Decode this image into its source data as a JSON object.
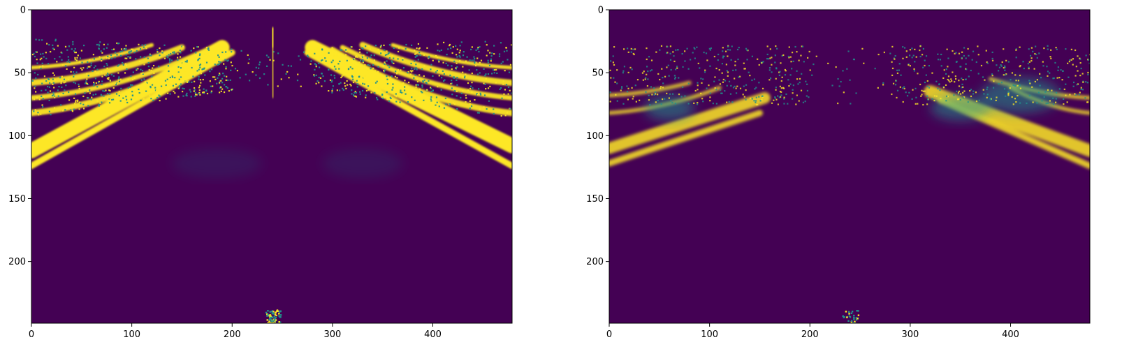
{
  "chart_data": [
    {
      "type": "heatmap",
      "colormap": "viridis",
      "colors": {
        "low": "#440154",
        "mid": "#21918c",
        "high": "#fde725"
      },
      "xlim": [
        0,
        479
      ],
      "ylim": [
        249,
        0
      ],
      "xticks": [
        0,
        100,
        200,
        300,
        400
      ],
      "yticks": [
        0,
        50,
        100,
        150,
        200
      ],
      "xtick_labels": [
        "0",
        "100",
        "200",
        "300",
        "400"
      ],
      "ytick_labels": [
        "0",
        "50",
        "100",
        "150",
        "200"
      ],
      "grid": false
    },
    {
      "type": "heatmap",
      "colormap": "viridis",
      "colors": {
        "low": "#440154",
        "mid": "#21918c",
        "high": "#fde725"
      },
      "xlim": [
        0,
        479
      ],
      "ylim": [
        249,
        0
      ],
      "xticks": [
        0,
        100,
        200,
        300,
        400
      ],
      "yticks": [
        0,
        50,
        100,
        150,
        200
      ],
      "xtick_labels": [
        "0",
        "100",
        "200",
        "300",
        "400"
      ],
      "ytick_labels": [
        "0",
        "50",
        "100",
        "150",
        "200"
      ],
      "grid": false
    }
  ]
}
